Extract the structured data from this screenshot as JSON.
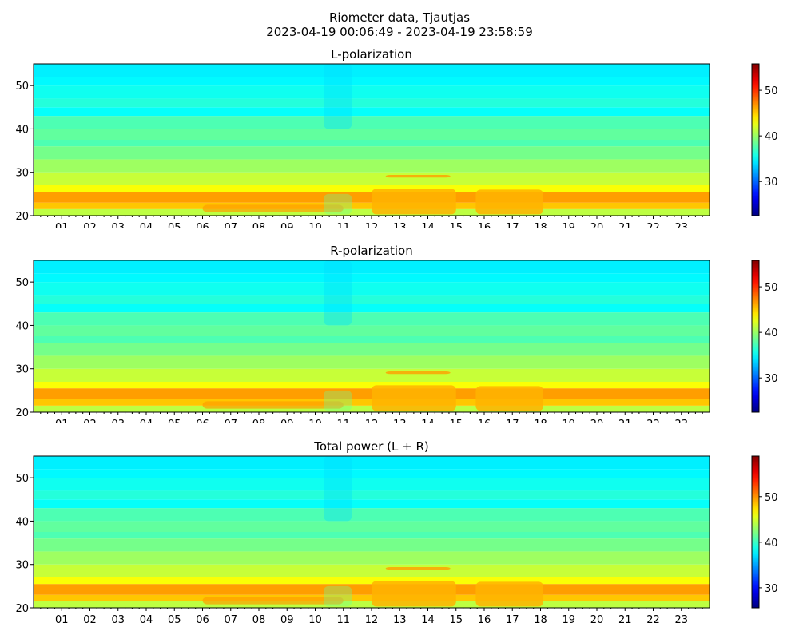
{
  "figure": {
    "title_line1": "Riometer data, Tjautjas",
    "title_line2": "2023-04-19 00:06:49 - 2023-04-19 23:58:59"
  },
  "chart_data": [
    {
      "type": "heatmap",
      "title": "L-polarization",
      "xlabel": "",
      "ylabel": "",
      "xlim": [
        0,
        24
      ],
      "ylim": [
        20,
        55
      ],
      "x_ticks": [
        "01",
        "02",
        "03",
        "04",
        "05",
        "06",
        "07",
        "08",
        "09",
        "10",
        "11",
        "12",
        "13",
        "14",
        "15",
        "16",
        "17",
        "18",
        "19",
        "20",
        "21",
        "22",
        "23"
      ],
      "y_ticks": [
        20,
        30,
        40,
        50
      ],
      "colorbar": {
        "colormap": "jet",
        "range": [
          22.5,
          55.8
        ],
        "ticks": [
          30,
          40,
          50
        ]
      }
    },
    {
      "type": "heatmap",
      "title": "R-polarization",
      "xlabel": "",
      "ylabel": "",
      "xlim": [
        0,
        24
      ],
      "ylim": [
        20,
        55
      ],
      "x_ticks": [
        "01",
        "02",
        "03",
        "04",
        "05",
        "06",
        "07",
        "08",
        "09",
        "10",
        "11",
        "12",
        "13",
        "14",
        "15",
        "16",
        "17",
        "18",
        "19",
        "20",
        "21",
        "22",
        "23"
      ],
      "y_ticks": [
        20,
        30,
        40,
        50
      ],
      "colorbar": {
        "colormap": "jet",
        "range": [
          22.5,
          55.8
        ],
        "ticks": [
          30,
          40,
          50
        ]
      }
    },
    {
      "type": "heatmap",
      "title": "Total power (L + R)",
      "xlabel": "",
      "ylabel": "",
      "xlim": [
        0,
        24
      ],
      "ylim": [
        20,
        55
      ],
      "x_ticks": [
        "01",
        "02",
        "03",
        "04",
        "05",
        "06",
        "07",
        "08",
        "09",
        "10",
        "11",
        "12",
        "13",
        "14",
        "15",
        "16",
        "17",
        "18",
        "19",
        "20",
        "21",
        "22",
        "23"
      ],
      "y_ticks": [
        20,
        30,
        40,
        50
      ],
      "colorbar": {
        "colormap": "jet",
        "range": [
          25.6,
          58.9
        ],
        "ticks": [
          30,
          40,
          50
        ]
      }
    }
  ]
}
